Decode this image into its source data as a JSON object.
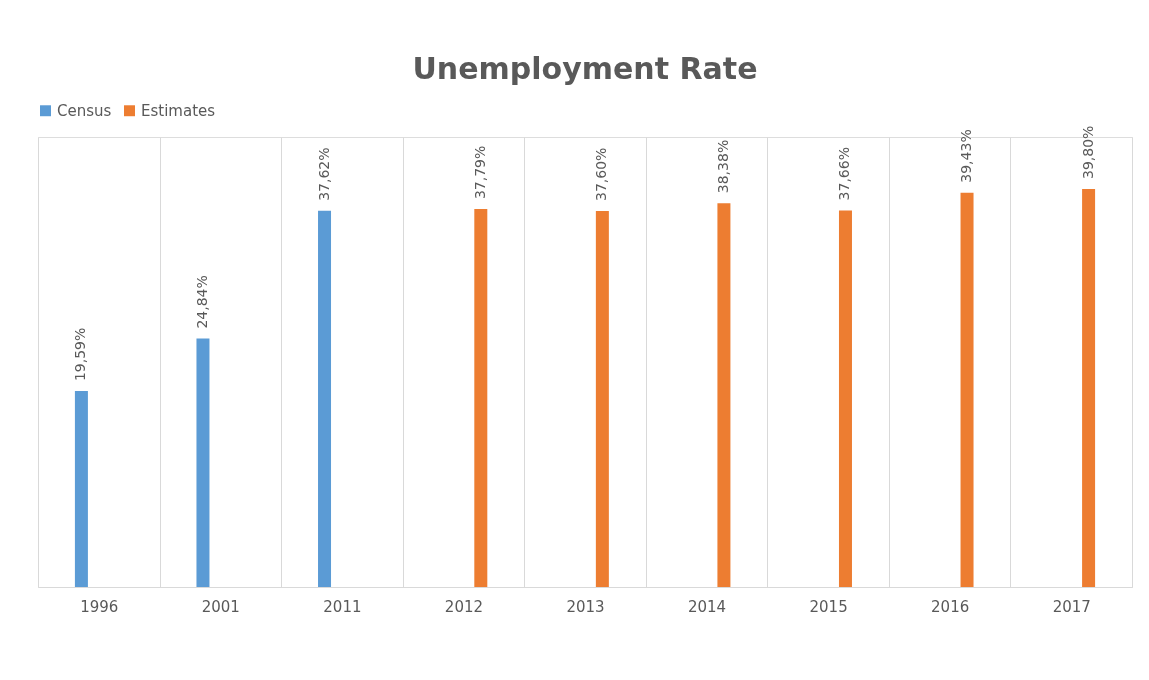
{
  "chart_data": {
    "type": "bar",
    "title": "Unemployment Rate",
    "categories": [
      "1996",
      "2001",
      "2011",
      "2012",
      "2013",
      "2014",
      "2015",
      "2016",
      "2017"
    ],
    "series": [
      {
        "name": "Census",
        "color": "#5b9bd5",
        "values": [
          19.59,
          24.84,
          37.62,
          null,
          null,
          null,
          null,
          null,
          null
        ],
        "value_labels": [
          "19,59%",
          "24,84%",
          "37,62%",
          null,
          null,
          null,
          null,
          null,
          null
        ]
      },
      {
        "name": "Estimates",
        "color": "#ed7d31",
        "values": [
          null,
          null,
          null,
          37.79,
          37.6,
          38.38,
          37.66,
          39.43,
          39.8
        ],
        "value_labels": [
          null,
          null,
          null,
          "37,79%",
          "37,60%",
          "38,38%",
          "37,66%",
          "39,43%",
          "39,80%"
        ]
      }
    ],
    "ylim": [
      0,
      45
    ],
    "tick_labels": "x",
    "grid": "x",
    "legend": "top"
  }
}
